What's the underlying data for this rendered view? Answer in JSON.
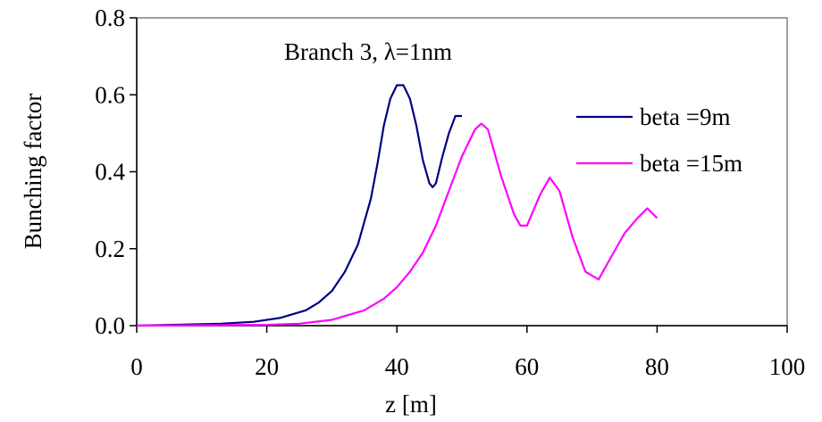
{
  "chart_data": {
    "type": "line",
    "title": "",
    "xlabel": "z [m]",
    "ylabel": "Bunching factor",
    "xlim": [
      0,
      100
    ],
    "ylim": [
      0,
      0.8
    ],
    "xticks": [
      0,
      20,
      40,
      60,
      80,
      100
    ],
    "yticks": [
      0.0,
      0.2,
      0.4,
      0.6,
      0.8
    ],
    "xtick_labels": [
      "0",
      "20",
      "40",
      "60",
      "80",
      "100"
    ],
    "ytick_labels": [
      "0.0",
      "0.2",
      "0.4",
      "0.6",
      "0.8"
    ],
    "grid": false,
    "legend_position": "right",
    "annotation": "Branch 3, λ=1nm",
    "series": [
      {
        "name": "beta =9m",
        "color": "#000080",
        "x": [
          0,
          13,
          18,
          22,
          26,
          28,
          30,
          32,
          34,
          36,
          37,
          38,
          39,
          40,
          41,
          42,
          43,
          44,
          45,
          45.5,
          46,
          47,
          48,
          49,
          50
        ],
        "y": [
          0.0,
          0.005,
          0.01,
          0.02,
          0.04,
          0.06,
          0.09,
          0.14,
          0.21,
          0.33,
          0.42,
          0.52,
          0.59,
          0.625,
          0.625,
          0.59,
          0.52,
          0.43,
          0.37,
          0.36,
          0.37,
          0.44,
          0.5,
          0.545,
          0.545
        ]
      },
      {
        "name": "beta =15m",
        "color": "#ff00ff",
        "x": [
          0,
          20,
          25,
          30,
          35,
          38,
          40,
          42,
          44,
          46,
          48,
          50,
          52,
          53,
          54,
          56,
          58,
          59,
          60,
          62,
          63.5,
          65,
          67,
          69,
          71,
          73,
          75,
          77,
          78.5,
          80
        ],
        "y": [
          0.0,
          0.002,
          0.005,
          0.015,
          0.04,
          0.07,
          0.1,
          0.14,
          0.19,
          0.26,
          0.35,
          0.44,
          0.51,
          0.525,
          0.51,
          0.39,
          0.29,
          0.26,
          0.26,
          0.34,
          0.385,
          0.35,
          0.23,
          0.14,
          0.12,
          0.18,
          0.24,
          0.28,
          0.305,
          0.28
        ]
      }
    ]
  }
}
